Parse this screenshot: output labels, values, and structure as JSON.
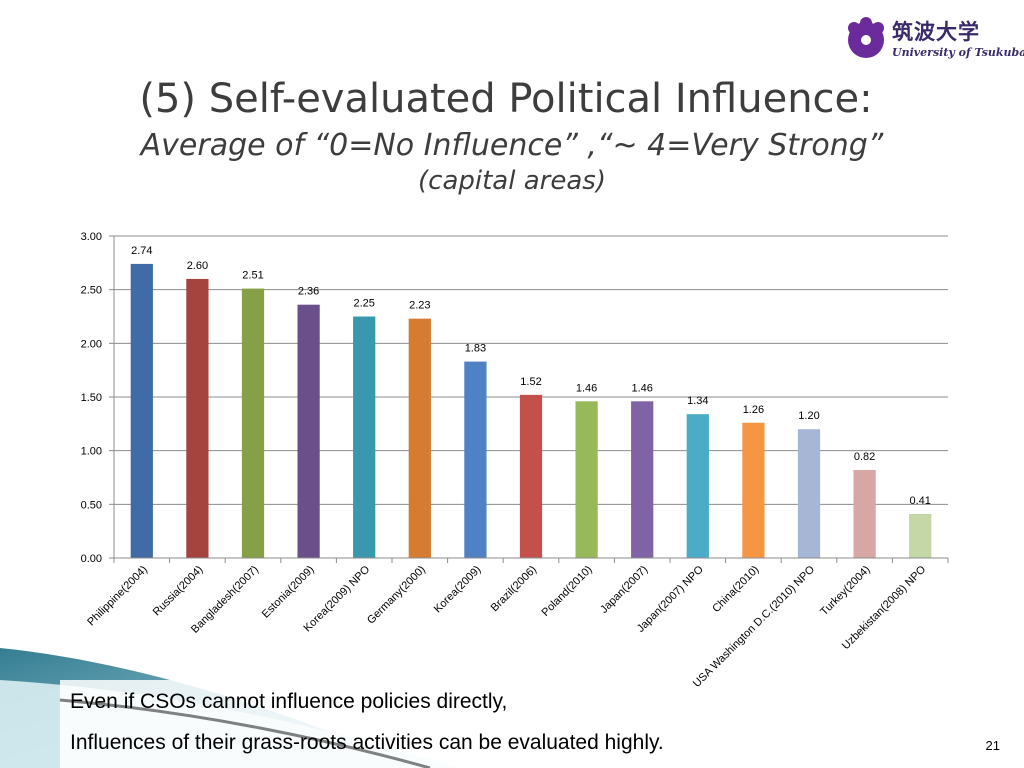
{
  "logo": {
    "jp": "筑波大学",
    "en": "University of Tsukuba"
  },
  "title": {
    "main": "(5) Self-evaluated Political Influence:",
    "sub": "Average of “0=No Influence” ,“~ 4=Very Strong”",
    "sub2": "(capital areas)"
  },
  "colors": {
    "bars": [
      "#3F6CA5",
      "#A5433F",
      "#86A046",
      "#6A4F8A",
      "#3A98AE",
      "#D57B32",
      "#4F82C4",
      "#C4504C",
      "#98B95A",
      "#8063A4",
      "#4AACC6",
      "#F59643",
      "#A5B6D6",
      "#D8A6A5",
      "#C5D7A7"
    ]
  },
  "chart_data": {
    "type": "bar",
    "title": "",
    "xlabel": "",
    "ylabel": "",
    "ylim": [
      0,
      3
    ],
    "yticks": [
      "0.00",
      "0.50",
      "1.00",
      "1.50",
      "2.00",
      "2.50",
      "3.00"
    ],
    "grid": true,
    "categories": [
      "Philippine(2004)",
      "Russia(2004)",
      "Bangladesh(2007)",
      "Estonia(2009)",
      "Korea(2009) NPO",
      "Germany(2000)",
      "Korea(2009)",
      "Brazil(2006)",
      "Poland(2010)",
      "Japan(2007)",
      "Japan(2007) NPO",
      "China(2010)",
      "USA Washington D.C.(2010) NPO",
      "Turkey(2004)",
      "Uzbekistan(2008) NPO"
    ],
    "values": [
      2.74,
      2.6,
      2.51,
      2.36,
      2.25,
      2.23,
      1.83,
      1.52,
      1.46,
      1.46,
      1.34,
      1.26,
      1.2,
      0.82,
      0.41
    ],
    "labels": [
      "2.74",
      "2.60",
      "2.51",
      "2.36",
      "2.25",
      "2.23",
      "1.83",
      "1.52",
      "1.46",
      "1.46",
      "1.34",
      "1.26",
      "1.20",
      "0.82",
      "0.41"
    ]
  },
  "caption": {
    "line1": "Even if CSOs cannot influence policies directly,",
    "line2": "Influences of their grass-roots activities can be evaluated highly."
  },
  "page_number": "21"
}
